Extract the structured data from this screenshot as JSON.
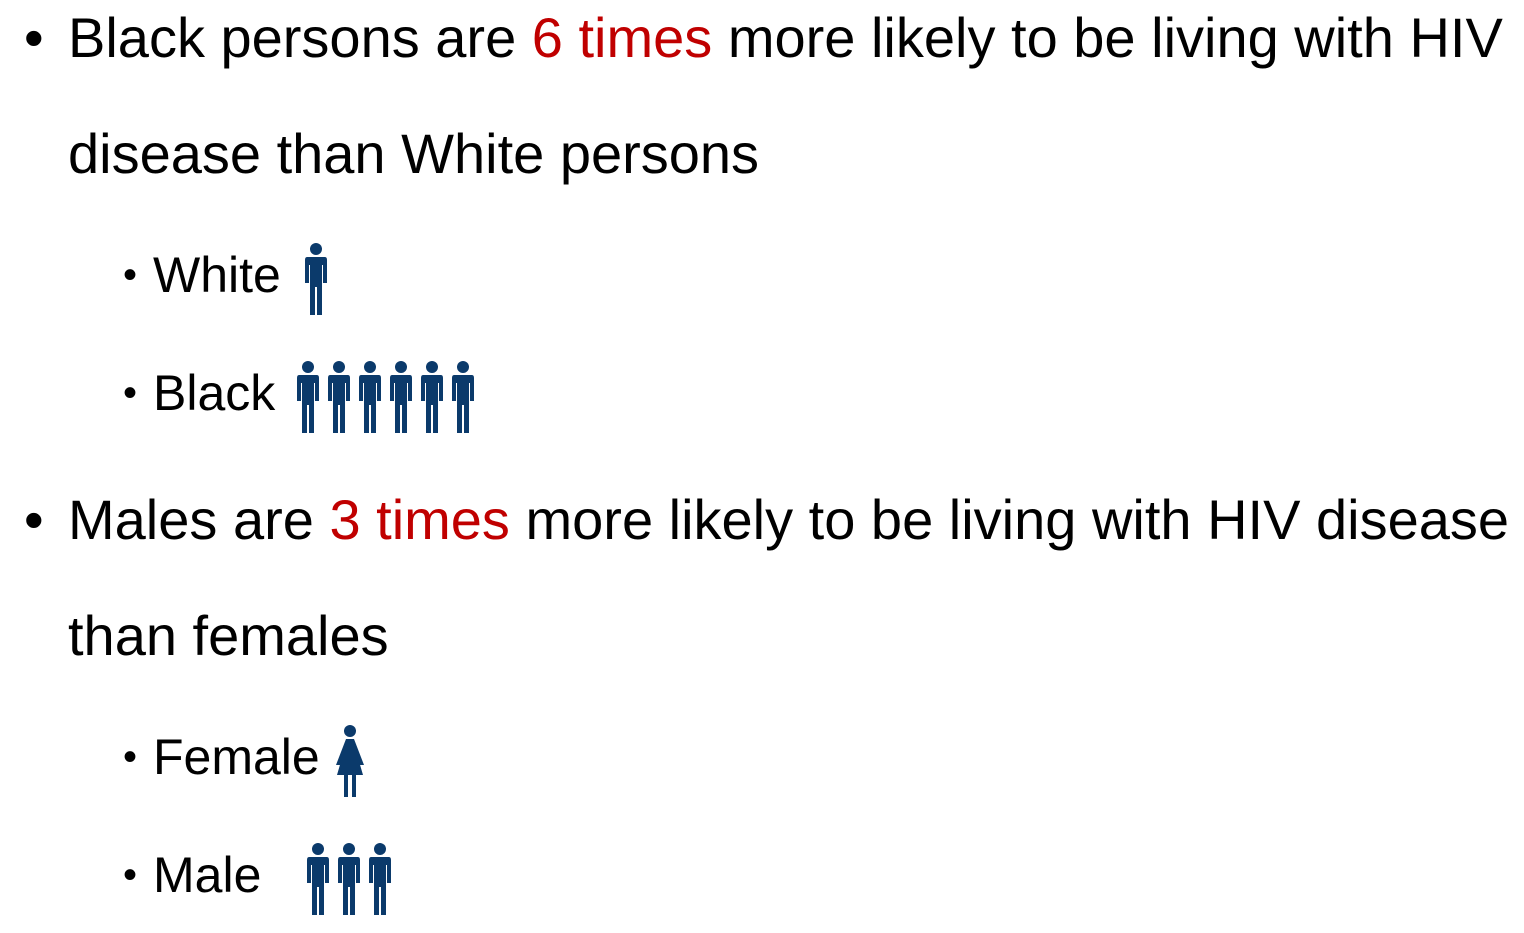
{
  "bullets": [
    {
      "before": "Black persons are ",
      "highlight": "6 times",
      "after": " more likely to be living with HIV disease than White persons",
      "sub": [
        "White",
        "Black"
      ]
    },
    {
      "before": "Males are ",
      "highlight": "3 times",
      "after": " more likely to be living with HIV disease than females",
      "sub": [
        "Female",
        "Male"
      ]
    }
  ]
}
